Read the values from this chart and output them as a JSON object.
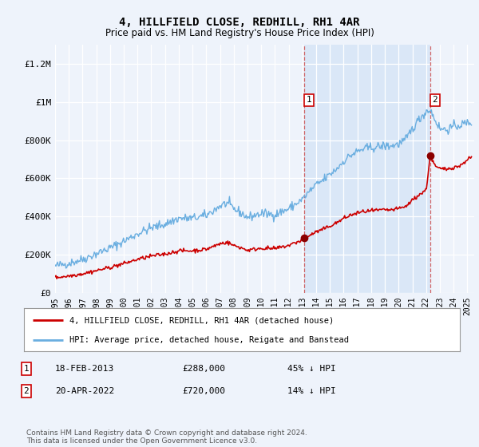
{
  "title": "4, HILLFIELD CLOSE, REDHILL, RH1 4AR",
  "subtitle": "Price paid vs. HM Land Registry's House Price Index (HPI)",
  "background_color": "#eef3fb",
  "plot_bg_color": "#eef3fb",
  "hpi_color": "#6aaee0",
  "hpi_fill_color": "#c8dcf5",
  "price_color": "#cc0000",
  "marker1_date_x": 2013.12,
  "marker2_date_x": 2022.3,
  "legend_line1": "4, HILLFIELD CLOSE, REDHILL, RH1 4AR (detached house)",
  "legend_line2": "HPI: Average price, detached house, Reigate and Banstead",
  "table_rows": [
    [
      "1",
      "18-FEB-2013",
      "£288,000",
      "45% ↓ HPI"
    ],
    [
      "2",
      "20-APR-2022",
      "£720,000",
      "14% ↓ HPI"
    ]
  ],
  "footnote": "Contains HM Land Registry data © Crown copyright and database right 2024.\nThis data is licensed under the Open Government Licence v3.0.",
  "ylim": [
    0,
    1300000
  ],
  "xlim_start": 1995.0,
  "xlim_end": 2025.5,
  "yticks": [
    0,
    200000,
    400000,
    600000,
    800000,
    1000000,
    1200000
  ],
  "ytick_labels": [
    "£0",
    "£200K",
    "£400K",
    "£600K",
    "£800K",
    "£1M",
    "£1.2M"
  ]
}
